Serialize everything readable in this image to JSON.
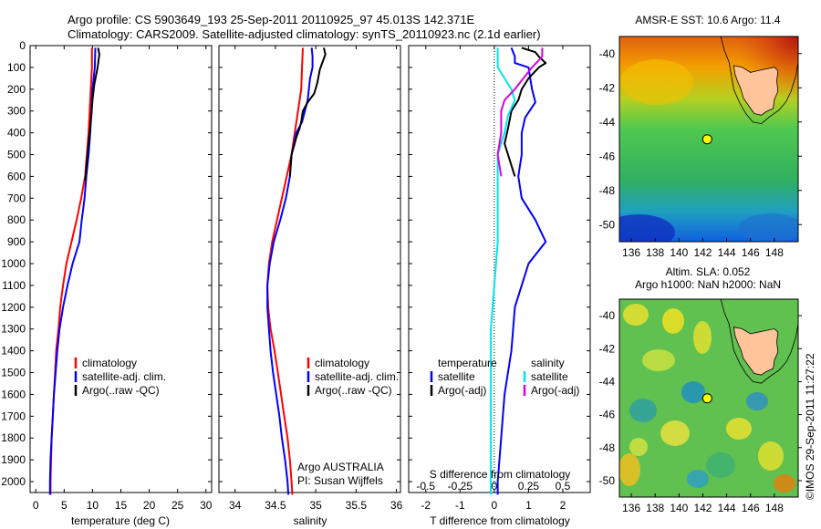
{
  "header": {
    "line1": "Argo profile: CS 5903649_193 25-Sep-2011 20110925_97 45.013S 142.371E",
    "line2": "Climatology: CARS2009. Satellite-adjusted climatology: synTS_20110923.nc (2.1d earlier)"
  },
  "colors": {
    "climatology": "#ff0000",
    "satellite": "#0000ff",
    "argo": "#000000",
    "s_satellite": "#00e5ee",
    "s_argo": "#dd00dd",
    "land": "#ffc49a",
    "marker": "#ffff00"
  },
  "depth_ticks": [
    "0",
    "100",
    "200",
    "300",
    "400",
    "500",
    "600",
    "700",
    "800",
    "900",
    "1000",
    "1100",
    "1200",
    "1300",
    "1400",
    "1500",
    "1600",
    "1700",
    "1800",
    "1900",
    "2000"
  ],
  "chart_data": [
    {
      "type": "line",
      "panel": "temperature",
      "xlabel": "temperature (deg C)",
      "xlim": [
        -1,
        31
      ],
      "xticks": [
        "0",
        "5",
        "10",
        "15",
        "20",
        "25",
        "30"
      ],
      "ylim": [
        2050,
        0
      ],
      "legend": {
        "placement": "bottom-left",
        "items": [
          "climatology",
          "satellite-adj. clim.",
          "Argo(..raw -QC)"
        ]
      },
      "series": [
        {
          "name": "climatology",
          "color_key": "climatology",
          "points": [
            [
              9.9,
              10
            ],
            [
              9.9,
              100
            ],
            [
              9.7,
              200
            ],
            [
              9.5,
              300
            ],
            [
              9.3,
              400
            ],
            [
              9.0,
              500
            ],
            [
              8.7,
              600
            ],
            [
              8.0,
              700
            ],
            [
              7.2,
              800
            ],
            [
              6.3,
              900
            ],
            [
              5.4,
              1000
            ],
            [
              4.8,
              1100
            ],
            [
              4.3,
              1200
            ],
            [
              4.0,
              1300
            ],
            [
              3.6,
              1400
            ],
            [
              3.4,
              1500
            ],
            [
              3.2,
              1600
            ],
            [
              3.0,
              1700
            ],
            [
              2.8,
              1800
            ],
            [
              2.7,
              1900
            ],
            [
              2.6,
              2000
            ],
            [
              2.6,
              2060
            ]
          ]
        },
        {
          "name": "satellite-adj. clim.",
          "color_key": "satellite",
          "points": [
            [
              10.5,
              10
            ],
            [
              10.4,
              100
            ],
            [
              10.0,
              200
            ],
            [
              9.8,
              300
            ],
            [
              9.6,
              400
            ],
            [
              9.3,
              500
            ],
            [
              8.9,
              600
            ],
            [
              8.6,
              700
            ],
            [
              8.1,
              800
            ],
            [
              7.7,
              900
            ],
            [
              6.5,
              1000
            ],
            [
              5.6,
              1100
            ],
            [
              4.8,
              1200
            ],
            [
              4.2,
              1300
            ],
            [
              3.8,
              1400
            ],
            [
              3.5,
              1500
            ],
            [
              3.2,
              1600
            ],
            [
              3.0,
              1700
            ],
            [
              2.8,
              1800
            ],
            [
              2.6,
              1900
            ],
            [
              2.5,
              2000
            ],
            [
              2.5,
              2060
            ]
          ]
        },
        {
          "name": "Argo(..raw -QC)",
          "color_key": "argo",
          "points": [
            [
              11.0,
              10
            ],
            [
              11.2,
              40
            ],
            [
              10.9,
              100
            ],
            [
              10.3,
              180
            ],
            [
              10.0,
              250
            ],
            [
              9.8,
              320
            ],
            [
              9.5,
              400
            ],
            [
              9.2,
              480
            ],
            [
              8.9,
              560
            ],
            [
              8.7,
              620
            ]
          ]
        }
      ]
    },
    {
      "type": "line",
      "panel": "salinity",
      "xlabel": "salinity",
      "xlim": [
        33.8,
        36.05
      ],
      "xticks": [
        "34",
        "34.5",
        "35",
        "35.5",
        "36"
      ],
      "ylim": [
        2050,
        0
      ],
      "legend": {
        "placement": "bottom-right",
        "items": [
          "climatology",
          "satellite-adj. clim.",
          "Argo(..raw -QC)"
        ]
      },
      "annotation": [
        "Argo AUSTRALIA",
        "PI: Susan Wijffels"
      ],
      "series": [
        {
          "name": "climatology",
          "color_key": "climatology",
          "points": [
            [
              34.84,
              10
            ],
            [
              34.83,
              100
            ],
            [
              34.82,
              200
            ],
            [
              34.78,
              300
            ],
            [
              34.74,
              400
            ],
            [
              34.7,
              500
            ],
            [
              34.64,
              600
            ],
            [
              34.58,
              700
            ],
            [
              34.52,
              800
            ],
            [
              34.46,
              900
            ],
            [
              34.42,
              1000
            ],
            [
              34.4,
              1100
            ],
            [
              34.41,
              1200
            ],
            [
              34.44,
              1300
            ],
            [
              34.49,
              1400
            ],
            [
              34.53,
              1500
            ],
            [
              34.57,
              1600
            ],
            [
              34.61,
              1700
            ],
            [
              34.65,
              1800
            ],
            [
              34.68,
              1900
            ],
            [
              34.7,
              2000
            ],
            [
              34.71,
              2060
            ]
          ]
        },
        {
          "name": "satellite-adj. clim.",
          "color_key": "satellite",
          "points": [
            [
              34.95,
              10
            ],
            [
              34.96,
              50
            ],
            [
              34.96,
              100
            ],
            [
              34.93,
              150
            ],
            [
              34.9,
              250
            ],
            [
              34.83,
              350
            ],
            [
              34.76,
              400
            ],
            [
              34.73,
              450
            ],
            [
              34.7,
              500
            ],
            [
              34.69,
              550
            ],
            [
              34.68,
              600
            ],
            [
              34.63,
              700
            ],
            [
              34.56,
              800
            ],
            [
              34.48,
              900
            ],
            [
              34.43,
              1000
            ],
            [
              34.4,
              1100
            ],
            [
              34.4,
              1200
            ],
            [
              34.42,
              1300
            ],
            [
              34.44,
              1400
            ],
            [
              34.47,
              1500
            ],
            [
              34.51,
              1600
            ],
            [
              34.55,
              1700
            ],
            [
              34.58,
              1800
            ],
            [
              34.62,
              1900
            ],
            [
              34.65,
              2000
            ],
            [
              34.66,
              2060
            ]
          ]
        },
        {
          "name": "Argo(..raw -QC)",
          "color_key": "argo",
          "points": [
            [
              35.1,
              10
            ],
            [
              35.12,
              40
            ],
            [
              35.08,
              80
            ],
            [
              35.05,
              110
            ],
            [
              35.02,
              170
            ],
            [
              34.98,
              220
            ],
            [
              34.9,
              260
            ],
            [
              34.84,
              300
            ],
            [
              34.82,
              350
            ],
            [
              34.8,
              380
            ],
            [
              34.76,
              420
            ],
            [
              34.73,
              460
            ],
            [
              34.7,
              500
            ],
            [
              34.69,
              550
            ],
            [
              34.68,
              600
            ]
          ]
        }
      ]
    },
    {
      "type": "line",
      "panel": "difference",
      "xlabel": "T difference from climatology",
      "xlim": [
        -2.5,
        2.8
      ],
      "xticks": [
        "-2",
        "-1",
        "0",
        "1",
        "2"
      ],
      "top_axis_label": "S difference from climatology",
      "top_ticks": [
        "-0.5",
        "-0.25",
        "0",
        "0.25",
        "0.5"
      ],
      "top_tick_values": [
        -0.5,
        -0.25,
        0,
        0.25,
        0.5
      ],
      "ylim": [
        2050,
        0
      ],
      "legend": {
        "placement": "bottom",
        "groups": [
          {
            "title": "temperature",
            "items": [
              "satellite",
              "Argo(-adj)"
            ]
          },
          {
            "title": "salinity",
            "items": [
              "satellite",
              "Argo(-adj)"
            ]
          }
        ]
      },
      "series": [
        {
          "name": "temperature satellite",
          "color_key": "satellite",
          "points": [
            [
              0.5,
              10
            ],
            [
              0.6,
              50
            ],
            [
              0.6,
              80
            ],
            [
              1.0,
              100
            ],
            [
              1.1,
              200
            ],
            [
              1.2,
              260
            ],
            [
              0.9,
              330
            ],
            [
              0.8,
              400
            ],
            [
              0.8,
              500
            ],
            [
              0.7,
              600
            ],
            [
              0.8,
              700
            ],
            [
              1.2,
              800
            ],
            [
              1.5,
              900
            ],
            [
              1.0,
              1000
            ],
            [
              0.8,
              1100
            ],
            [
              0.6,
              1200
            ],
            [
              0.5,
              1400
            ],
            [
              0.3,
              1600
            ],
            [
              0.2,
              1800
            ],
            [
              0.1,
              2000
            ],
            [
              0.1,
              2060
            ]
          ]
        },
        {
          "name": "temperature Argo(-adj)",
          "color_key": "argo",
          "points": [
            [
              0.8,
              10
            ],
            [
              1.0,
              20
            ],
            [
              1.2,
              30
            ],
            [
              1.3,
              50
            ],
            [
              1.5,
              80
            ],
            [
              1.3,
              100
            ],
            [
              1.0,
              150
            ],
            [
              0.8,
              200
            ],
            [
              0.7,
              250
            ],
            [
              0.5,
              300
            ],
            [
              0.4,
              380
            ],
            [
              0.3,
              450
            ],
            [
              0.4,
              500
            ],
            [
              0.6,
              600
            ]
          ]
        },
        {
          "name": "salinity satellite",
          "color_key": "s_satellite",
          "points": [
            [
              0.1,
              10
            ],
            [
              0.1,
              100
            ],
            [
              0.3,
              150
            ],
            [
              0.5,
              200
            ],
            [
              0.6,
              250
            ],
            [
              0.4,
              320
            ],
            [
              0.3,
              400
            ],
            [
              0.1,
              500
            ],
            [
              0.1,
              700
            ],
            [
              0.1,
              900
            ],
            [
              0.0,
              1100
            ],
            [
              -0.1,
              1300
            ],
            [
              -0.1,
              1500
            ],
            [
              -0.1,
              1700
            ],
            [
              -0.1,
              1900
            ],
            [
              -0.1,
              2060
            ]
          ]
        },
        {
          "name": "salinity Argo(-adj)",
          "color_key": "s_argo",
          "points": [
            [
              1.4,
              10
            ],
            [
              1.4,
              50
            ],
            [
              1.1,
              100
            ],
            [
              0.6,
              200
            ],
            [
              0.3,
              250
            ],
            [
              0.2,
              300
            ],
            [
              0.2,
              400
            ],
            [
              0.1,
              500
            ],
            [
              0.2,
              600
            ]
          ]
        }
      ]
    },
    {
      "type": "heatmap",
      "panel": "sst_map",
      "title": "AMSR-E SST: 10.6  Argo: 11.4",
      "xlim": [
        135,
        150
      ],
      "ylim": [
        -51,
        -39
      ],
      "xticks": [
        "136",
        "138",
        "140",
        "142",
        "144",
        "146",
        "148"
      ],
      "yticks": [
        "-40",
        "-42",
        "-44",
        "-46",
        "-48",
        "-50"
      ],
      "argo_position": {
        "lon": 142.371,
        "lat": -45.013
      }
    },
    {
      "type": "heatmap",
      "panel": "sla_map",
      "title": "Altim. SLA: 0.052",
      "subtitle": "Argo h1000: NaN h2000: NaN",
      "xlim": [
        135,
        150
      ],
      "ylim": [
        -51,
        -39
      ],
      "xticks": [
        "136",
        "138",
        "140",
        "142",
        "144",
        "146",
        "148"
      ],
      "yticks": [
        "-40",
        "-42",
        "-44",
        "-46",
        "-48",
        "-50"
      ],
      "argo_position": {
        "lon": 142.371,
        "lat": -45.013
      }
    }
  ],
  "legend_labels": {
    "climatology": "climatology",
    "satellite_adj": "satellite-adj. clim.",
    "argo_raw": "Argo(..raw -QC)",
    "temperature": "temperature",
    "salinity": "salinity",
    "satellite": "satellite",
    "argo_adj": "Argo(-adj)"
  },
  "sal_annotation": {
    "line1": "Argo AUSTRALIA",
    "line2": "PI: Susan Wijffels"
  },
  "watermark": "©IMOS 29-Sep-2011 11:27:22"
}
